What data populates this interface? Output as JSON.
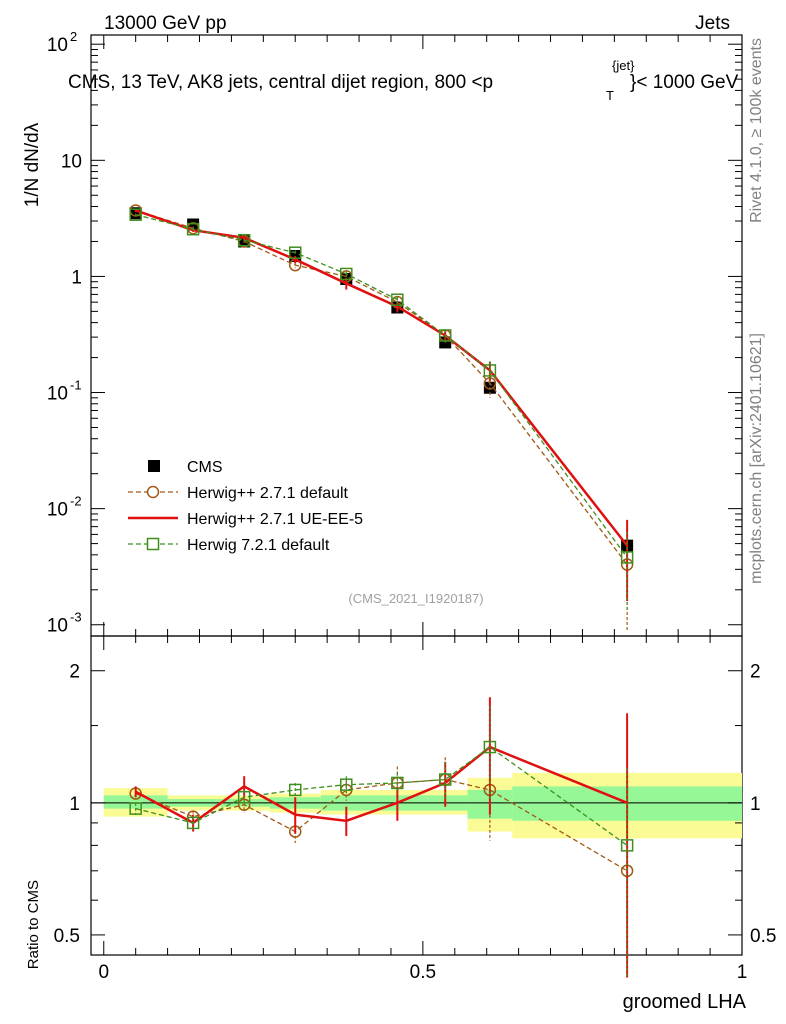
{
  "header": {
    "left": "13000 GeV pp",
    "right": "Jets"
  },
  "main_plot": {
    "title_prefix": "CMS, 13 TeV, AK8 jets, central dijet region, 800 <p",
    "title_sup": "{jet}",
    "title_sub": "T",
    "title_suffix": "}< 1000 GeV",
    "y_label": "1/N dN/dλ",
    "analysis_tag": "(CMS_2021_I1920187)",
    "side_label_top": "Rivet 4.1.0, ≥ 100k events",
    "side_label_bottom": "mcplots.cern.ch [arXiv:2401.10621]"
  },
  "colors": {
    "cms": "#000000",
    "herwig_default": "#a05a14",
    "herwig_ueee5": "#e01010",
    "herwig_721": "#3f8f1f",
    "band_stat": "#96f796",
    "band_total": "#fbfb96"
  },
  "legend": {
    "position": "center-left",
    "entries": [
      {
        "label": "CMS",
        "key": "cms"
      },
      {
        "label": "Herwig++ 2.7.1 default",
        "key": "herwig_default"
      },
      {
        "label": "Herwig++ 2.7.1 UE-EE-5",
        "key": "herwig_ueee5"
      },
      {
        "label": "Herwig 7.2.1 default",
        "key": "herwig_721"
      }
    ]
  },
  "chart_data": [
    {
      "type": "line",
      "panel": "main",
      "yscale": "log",
      "ylim": [
        0.0008,
        120
      ],
      "xlim": [
        -0.02,
        1.0
      ],
      "yticks": [
        {
          "value": 0.001,
          "base": "10",
          "exp": "-3"
        },
        {
          "value": 0.01,
          "base": "10",
          "exp": "-2"
        },
        {
          "value": 0.1,
          "base": "10",
          "exp": "-1"
        },
        {
          "value": 1,
          "base": "1",
          "exp": ""
        },
        {
          "value": 10,
          "base": "10",
          "exp": ""
        },
        {
          "value": 100,
          "base": "10",
          "exp": "2"
        }
      ],
      "x": [
        0.05,
        0.14,
        0.22,
        0.3,
        0.38,
        0.46,
        0.535,
        0.605,
        0.82
      ],
      "xerr": [
        [
          0.0,
          0.1
        ],
        [
          0.1,
          0.18
        ],
        [
          0.18,
          0.26
        ],
        [
          0.26,
          0.34
        ],
        [
          0.34,
          0.42
        ],
        [
          0.42,
          0.5
        ],
        [
          0.5,
          0.57
        ],
        [
          0.57,
          0.64
        ],
        [
          0.64,
          1.0
        ]
      ],
      "series": [
        {
          "name": "CMS",
          "key": "cms",
          "style": "square",
          "values": [
            3.5,
            2.8,
            2.0,
            1.5,
            0.95,
            0.54,
            0.27,
            0.11,
            0.0048
          ],
          "err": [
            0.12,
            0.1,
            0.08,
            0.06,
            0.05,
            0.04,
            0.025,
            0.012,
            0.0008
          ]
        },
        {
          "name": "Herwig++ 2.7.1 default",
          "key": "herwig_default",
          "style": "circle-dashed",
          "values": [
            3.7,
            2.6,
            2.0,
            1.25,
            1.0,
            0.6,
            0.31,
            0.12,
            0.0033
          ],
          "err": [
            0.1,
            0.08,
            0.07,
            0.07,
            0.07,
            0.06,
            0.04,
            0.03,
            0.0024
          ]
        },
        {
          "name": "Herwig++ 2.7.1 UE-EE-5",
          "key": "herwig_ueee5",
          "style": "solid",
          "values": [
            3.7,
            2.5,
            2.15,
            1.4,
            0.87,
            0.55,
            0.31,
            0.155,
            0.0048
          ],
          "err": [
            0.1,
            0.08,
            0.1,
            0.1,
            0.1,
            0.06,
            0.04,
            0.03,
            0.0032
          ]
        },
        {
          "name": "Herwig 7.2.1 default",
          "key": "herwig_721",
          "style": "square-dashed",
          "values": [
            3.4,
            2.55,
            2.05,
            1.6,
            1.05,
            0.63,
            0.31,
            0.155,
            0.0038
          ],
          "err": [
            0.08,
            0.07,
            0.07,
            0.07,
            0.07,
            0.05,
            0.04,
            0.03,
            0.0025
          ]
        }
      ]
    },
    {
      "type": "line",
      "panel": "ratio",
      "ylabel": "Ratio to CMS",
      "yscale": "log",
      "ylim": [
        0.45,
        2.4
      ],
      "xlim": [
        -0.02,
        1.0
      ],
      "yticks": [
        0.5,
        1,
        2
      ],
      "xticks": [
        0,
        0.5,
        1
      ],
      "xlabel": "groomed LHA",
      "bands": [
        {
          "x0": 0.0,
          "x1": 0.1,
          "stat": [
            0.97,
            1.04
          ],
          "total": [
            0.93,
            1.08
          ]
        },
        {
          "x0": 0.1,
          "x1": 0.26,
          "stat": [
            0.98,
            1.02
          ],
          "total": [
            0.96,
            1.04
          ]
        },
        {
          "x0": 0.26,
          "x1": 0.34,
          "stat": [
            0.97,
            1.03
          ],
          "total": [
            0.95,
            1.05
          ]
        },
        {
          "x0": 0.34,
          "x1": 0.57,
          "stat": [
            0.96,
            1.04
          ],
          "total": [
            0.94,
            1.07
          ]
        },
        {
          "x0": 0.57,
          "x1": 0.64,
          "stat": [
            0.92,
            1.07
          ],
          "total": [
            0.86,
            1.14
          ]
        },
        {
          "x0": 0.64,
          "x1": 1.0,
          "stat": [
            0.91,
            1.09
          ],
          "total": [
            0.83,
            1.17
          ]
        }
      ],
      "series": [
        {
          "name": "Herwig++ 2.7.1 default",
          "key": "herwig_default",
          "style": "circle-dashed",
          "values": [
            1.05,
            0.93,
            0.99,
            0.86,
            1.07,
            1.11,
            1.13,
            1.07,
            0.7
          ],
          "err": [
            0.03,
            0.03,
            0.04,
            0.05,
            0.06,
            0.1,
            0.14,
            0.25,
            0.3
          ]
        },
        {
          "name": "Herwig++ 2.7.1 UE-EE-5",
          "key": "herwig_ueee5",
          "style": "solid",
          "values": [
            1.06,
            0.9,
            1.09,
            0.94,
            0.91,
            1.0,
            1.11,
            1.34,
            1.0
          ],
          "err": [
            0.03,
            0.04,
            0.06,
            0.09,
            0.07,
            0.09,
            0.13,
            0.4,
            0.6
          ]
        },
        {
          "name": "Herwig 7.2.1 default",
          "key": "herwig_721",
          "style": "square-dashed",
          "values": [
            0.97,
            0.9,
            1.03,
            1.07,
            1.1,
            1.11,
            1.13,
            1.34,
            0.8
          ],
          "err": [
            0.03,
            0.03,
            0.04,
            0.04,
            0.05,
            0.06,
            0.11,
            0.32,
            0.4
          ]
        }
      ]
    }
  ]
}
